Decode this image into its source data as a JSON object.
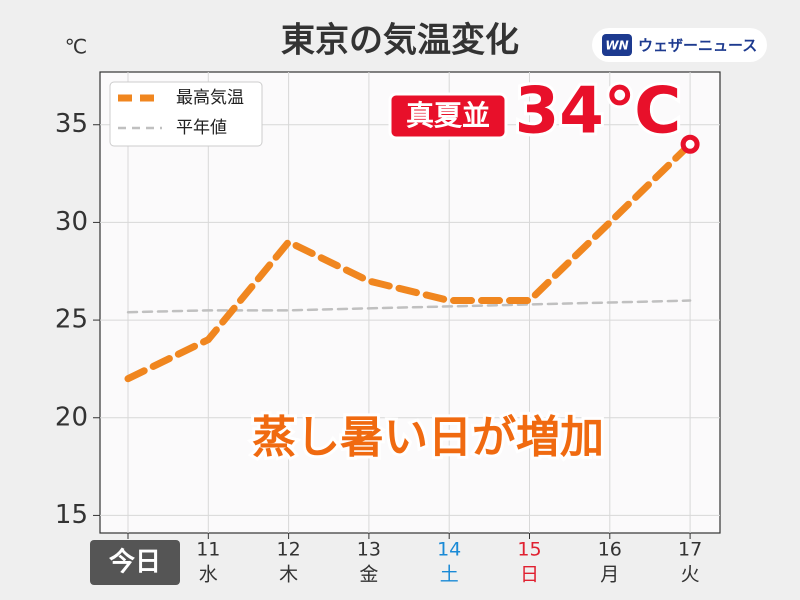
{
  "chart_data": {
    "type": "line",
    "title": "東京の気温変化",
    "y_unit": "℃",
    "categories": [
      "今日",
      "11",
      "12",
      "13",
      "14",
      "15",
      "16",
      "17"
    ],
    "weekdays": [
      null,
      "水",
      "木",
      "金",
      "土",
      "日",
      "月",
      "火"
    ],
    "category_colors": [
      "#ffffff",
      "#333333",
      "#333333",
      "#333333",
      "#1a8ad6",
      "#e02030",
      "#333333",
      "#333333"
    ],
    "series": [
      {
        "name": "最高気温",
        "color": "#f0861f",
        "values": [
          22,
          24,
          29,
          27,
          26,
          26,
          30,
          34
        ]
      },
      {
        "name": "平年値",
        "color": "#c0c0c0",
        "values": [
          25.4,
          25.5,
          25.5,
          25.6,
          25.7,
          25.8,
          25.9,
          26.0
        ]
      }
    ],
    "ylim": [
      14.1,
      37.7
    ],
    "yticks": [
      15,
      20,
      25,
      30,
      35
    ],
    "grid": true,
    "legend": "upper-left",
    "annotations": {
      "badge": "真夏並",
      "peak": "34℃",
      "headline": "蒸し暑い日が増加"
    },
    "logo": "ウェザーニュース"
  }
}
